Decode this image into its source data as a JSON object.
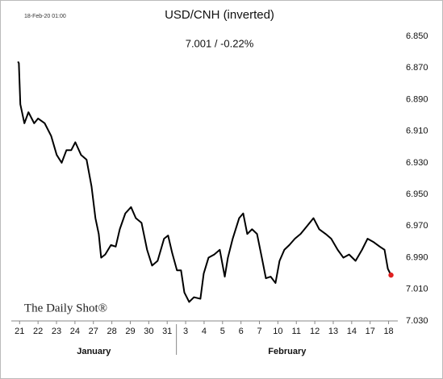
{
  "chart_data": {
    "type": "line",
    "title": "USD/CNH (inverted)",
    "subtitle": "7.001  /  -0.22%",
    "timestamp": "18-Feb-20 01:00",
    "watermark": "The Daily Shot®",
    "months": [
      "January",
      "February"
    ],
    "color": "#000000",
    "last_point_color": "#e02020",
    "inverted": true,
    "x": [
      -0.09,
      -0.04,
      0.04,
      0.26,
      0.48,
      0.79,
      1.0,
      1.36,
      1.71,
      2.01,
      2.28,
      2.54,
      2.8,
      3.02,
      3.33,
      3.63,
      3.9,
      4.11,
      4.29,
      4.42,
      4.64,
      4.95,
      5.21,
      5.43,
      5.73,
      6.04,
      6.3,
      6.61,
      6.91,
      7.18,
      7.48,
      7.83,
      8.05,
      8.27,
      8.53,
      8.75,
      8.93,
      9.19,
      9.45,
      9.8,
      9.98,
      10.24,
      10.55,
      10.85,
      11.12,
      11.29,
      11.55,
      11.9,
      12.12,
      12.34,
      12.6,
      12.87,
      13.13,
      13.35,
      13.61,
      13.87,
      14.09,
      14.35,
      14.62,
      14.92,
      15.23,
      15.58,
      15.93,
      16.24,
      16.59,
      16.89,
      17.24,
      17.55,
      17.86,
      18.21,
      18.56,
      18.86,
      19.17,
      19.52,
      19.78,
      19.96,
      20.13
    ],
    "values": [
      6.866,
      6.867,
      6.893,
      6.905,
      6.898,
      6.905,
      6.902,
      6.905,
      6.913,
      6.925,
      6.93,
      6.922,
      6.922,
      6.917,
      6.925,
      6.928,
      6.945,
      6.965,
      6.975,
      6.99,
      6.988,
      6.982,
      6.983,
      6.972,
      6.962,
      6.958,
      6.965,
      6.968,
      6.985,
      6.995,
      6.992,
      6.978,
      6.976,
      6.987,
      6.998,
      6.998,
      7.012,
      7.018,
      7.015,
      7.016,
      7.0,
      6.99,
      6.988,
      6.985,
      7.002,
      6.99,
      6.978,
      6.965,
      6.962,
      6.975,
      6.972,
      6.975,
      6.99,
      7.003,
      7.002,
      7.006,
      6.992,
      6.985,
      6.982,
      6.978,
      6.975,
      6.97,
      6.965,
      6.972,
      6.975,
      6.978,
      6.985,
      6.99,
      6.988,
      6.992,
      6.985,
      6.978,
      6.98,
      6.983,
      6.985,
      6.997,
      7.001
    ],
    "xlim": [
      -0.45,
      20.5
    ],
    "xticks": [
      {
        "value": 0,
        "label": "21"
      },
      {
        "value": 1,
        "label": "22"
      },
      {
        "value": 2,
        "label": "23"
      },
      {
        "value": 3,
        "label": "24"
      },
      {
        "value": 4,
        "label": "27"
      },
      {
        "value": 5,
        "label": "28"
      },
      {
        "value": 6,
        "label": "29"
      },
      {
        "value": 7,
        "label": "30"
      },
      {
        "value": 8,
        "label": "31"
      },
      {
        "value": 9,
        "label": "3"
      },
      {
        "value": 10,
        "label": "4"
      },
      {
        "value": 11,
        "label": "5"
      },
      {
        "value": 12,
        "label": "6"
      },
      {
        "value": 13,
        "label": "7"
      },
      {
        "value": 14,
        "label": "10"
      },
      {
        "value": 15,
        "label": "11"
      },
      {
        "value": 16,
        "label": "12"
      },
      {
        "value": 17,
        "label": "13"
      },
      {
        "value": 18,
        "label": "14"
      },
      {
        "value": 19,
        "label": "17"
      },
      {
        "value": 20,
        "label": "18"
      }
    ],
    "ylim": [
      6.85,
      7.03
    ],
    "yticks": [
      {
        "value": 6.85,
        "label": "6.850"
      },
      {
        "value": 6.87,
        "label": "6.870"
      },
      {
        "value": 6.89,
        "label": "6.890"
      },
      {
        "value": 6.91,
        "label": "6.910"
      },
      {
        "value": 6.93,
        "label": "6.930"
      },
      {
        "value": 6.95,
        "label": "6.950"
      },
      {
        "value": 6.97,
        "label": "6.970"
      },
      {
        "value": 6.99,
        "label": "6.990"
      },
      {
        "value": 7.01,
        "label": "7.010"
      },
      {
        "value": 7.03,
        "label": "7.030"
      }
    ]
  }
}
